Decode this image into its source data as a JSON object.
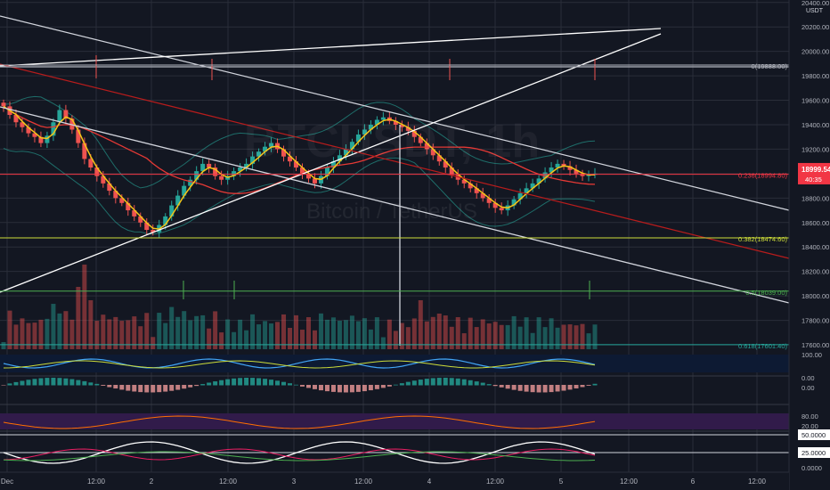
{
  "chart_data": {
    "type": "candlestick",
    "title": "Bitcoin / TetherUS",
    "watermark": "BTCUSDT, 1h",
    "currency": "USDT",
    "y_axis_labels": [
      "20400.00",
      "20200.00",
      "20000.00",
      "19800.00",
      "19600.00",
      "19400.00",
      "19200.00",
      "19000.00",
      "18800.00",
      "18600.00",
      "18400.00",
      "18200.00",
      "18000.00",
      "17800.00",
      "17600.00"
    ],
    "ylim": [
      17520,
      20420
    ],
    "x_axis_labels": [
      "Dec",
      "12:00",
      "2",
      "12:00",
      "3",
      "12:00",
      "4",
      "12:00",
      "5",
      "12:00",
      "6",
      "12:00"
    ],
    "last_price": {
      "value": "18999.54",
      "countdown": "40:35",
      "color": "#f23645"
    },
    "fib_levels": [
      {
        "label": "0(19888.00)",
        "value": 19888.0,
        "color": "#b2b5be"
      },
      {
        "label": "0.236(18994.80)",
        "value": 18994.8,
        "color": "#f23645"
      },
      {
        "label": "0.382(18474.60)",
        "value": 18474.6,
        "color": "#cddc39"
      },
      {
        "label": "0.5(18039.00)",
        "value": 18039.0,
        "color": "#4caf50"
      },
      {
        "label": "0.618(17601.40)",
        "value": 17601.4,
        "color": "#26a69a"
      }
    ],
    "close_series": [
      19550,
      19480,
      19420,
      19380,
      19330,
      19300,
      19250,
      19310,
      19420,
      19520,
      19450,
      19360,
      19250,
      19120,
      19050,
      18980,
      18920,
      18860,
      18800,
      18760,
      18700,
      18650,
      18600,
      18540,
      18520,
      18580,
      18650,
      18740,
      18820,
      18900,
      18950,
      19020,
      19080,
      19050,
      18980,
      18950,
      18980,
      19020,
      19050,
      19080,
      19140,
      19180,
      19220,
      19250,
      19200,
      19140,
      19100,
      19050,
      19000,
      18960,
      18920,
      18980,
      19050,
      19100,
      19150,
      19200,
      19260,
      19320,
      19360,
      19400,
      19440,
      19460,
      19430,
      19400,
      19380,
      19350,
      19300,
      19250,
      19200,
      19150,
      19100,
      19050,
      18990,
      18950,
      18920,
      18880,
      18840,
      18800,
      18760,
      18720,
      18700,
      18740,
      18790,
      18840,
      18880,
      18920,
      18960,
      19010,
      19050,
      19080,
      19060,
      19030,
      19000,
      18980,
      18990,
      19000
    ],
    "panels": {
      "indicator_1_labels": [
        "100.00",
        "0.00"
      ],
      "indicator_2_labels": [
        "0.00"
      ],
      "indicator_3_labels": [
        "80.00",
        "20.00"
      ],
      "indicator_4_labels": [
        "50.0000",
        "25.0000",
        "0.0000"
      ]
    }
  }
}
